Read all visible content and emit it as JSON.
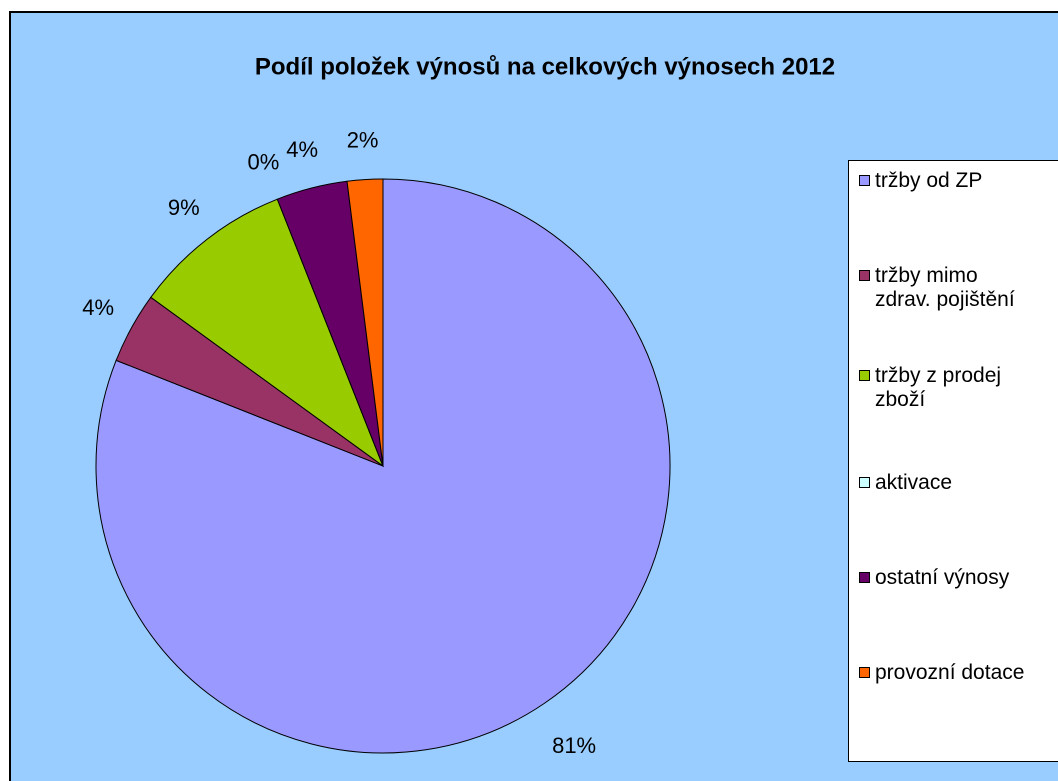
{
  "chart_data": {
    "type": "pie",
    "title": "Podíl položek výnosů na celkových výnosech 2012",
    "categories": [
      "tržby od ZP",
      "tržby mimo zdrav. pojištění",
      "tržby z prodej zboží",
      "aktivace",
      "ostatní výnosy",
      "provozní dotace"
    ],
    "values": [
      81,
      4,
      9,
      0,
      4,
      2
    ],
    "value_labels": [
      "81%",
      "4%",
      "9%",
      "0%",
      "4%",
      "2%"
    ],
    "colors": [
      "#9999ff",
      "#993366",
      "#99cc00",
      "#ccffff",
      "#660066",
      "#ff6600"
    ],
    "legend": "right"
  }
}
